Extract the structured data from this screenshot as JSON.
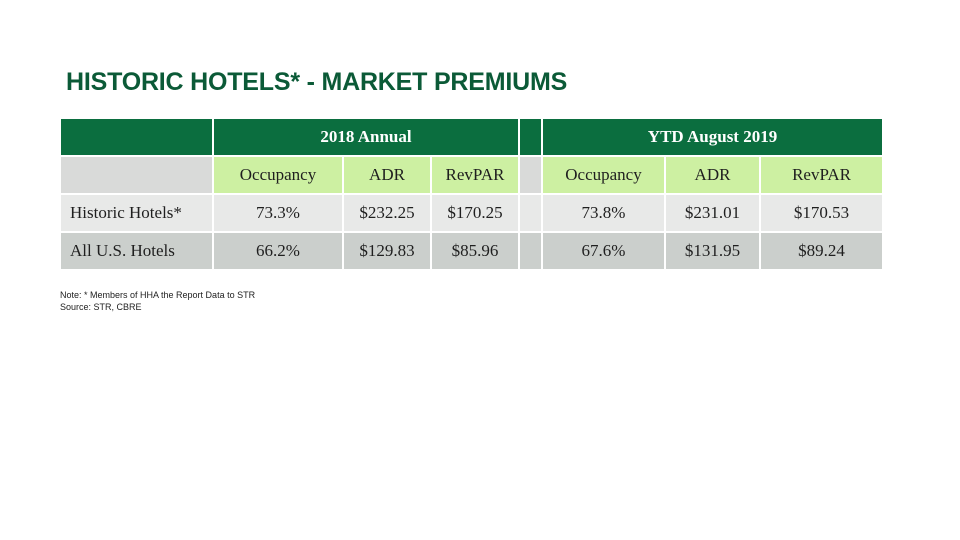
{
  "title": "HISTORIC HOTELS* - MARKET PREMIUMS",
  "table": {
    "periods": [
      "2018 Annual",
      "YTD August 2019"
    ],
    "metrics": [
      "Occupancy",
      "ADR",
      "RevPAR"
    ],
    "rows": [
      {
        "label": "Historic Hotels*",
        "values_2018": [
          "73.3%",
          "$232.25",
          "$170.25"
        ],
        "values_ytd": [
          "73.8%",
          "$231.01",
          "$170.53"
        ]
      },
      {
        "label": "All U.S. Hotels",
        "values_2018": [
          "66.2%",
          "$129.83",
          "$85.96"
        ],
        "values_ytd": [
          "67.6%",
          "$131.95",
          "$89.24"
        ]
      }
    ]
  },
  "notes": {
    "note": "Note: * Members of HHA the Report Data to STR",
    "source": "Source: STR, CBRE"
  },
  "colors": {
    "title": "#0b5a37",
    "header_green": "#0b6e3f",
    "metric_green": "#cdf0a2",
    "row_light": "#e8e9e8",
    "row_dark": "#cbcfcc"
  }
}
